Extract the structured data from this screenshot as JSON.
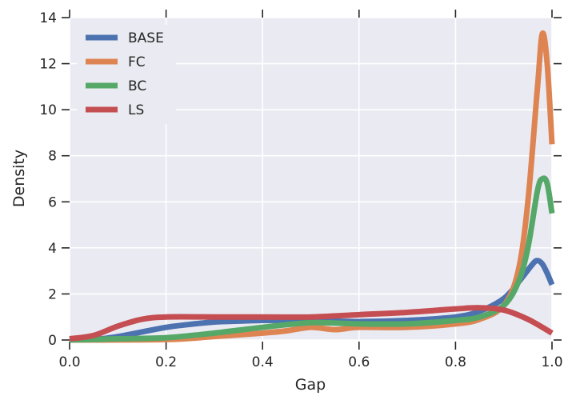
{
  "chart_data": {
    "type": "line",
    "title": "",
    "xlabel": "Gap",
    "ylabel": "Density",
    "xlim": [
      0,
      1
    ],
    "ylim": [
      0,
      14
    ],
    "xticks": [
      "0.0",
      "0.2",
      "0.4",
      "0.6",
      "0.8",
      "1.0"
    ],
    "yticks": [
      "0",
      "2",
      "4",
      "6",
      "8",
      "10",
      "12",
      "14"
    ],
    "grid": true,
    "legend_position": "top-left",
    "series": [
      {
        "name": "BASE",
        "color": "#4c72b0",
        "x": [
          0,
          0.05,
          0.1,
          0.15,
          0.2,
          0.25,
          0.3,
          0.35,
          0.4,
          0.5,
          0.6,
          0.7,
          0.8,
          0.85,
          0.9,
          0.93,
          0.96,
          0.97,
          0.98,
          0.99,
          1.0
        ],
        "y": [
          0,
          0.02,
          0.15,
          0.35,
          0.55,
          0.68,
          0.78,
          0.82,
          0.85,
          0.85,
          0.8,
          0.85,
          1.0,
          1.25,
          1.8,
          2.5,
          3.3,
          3.45,
          3.3,
          2.9,
          2.4
        ]
      },
      {
        "name": "FC",
        "color": "#dd8452",
        "x": [
          0,
          0.2,
          0.3,
          0.4,
          0.45,
          0.5,
          0.55,
          0.6,
          0.7,
          0.8,
          0.85,
          0.9,
          0.93,
          0.95,
          0.97,
          0.98,
          0.99,
          1.0
        ],
        "y": [
          0,
          0.02,
          0.15,
          0.3,
          0.4,
          0.55,
          0.45,
          0.55,
          0.55,
          0.7,
          0.9,
          1.5,
          3.0,
          6.0,
          11.0,
          13.3,
          12.0,
          8.5
        ]
      },
      {
        "name": "BC",
        "color": "#55a868",
        "x": [
          0,
          0.1,
          0.2,
          0.3,
          0.4,
          0.5,
          0.6,
          0.7,
          0.8,
          0.85,
          0.9,
          0.93,
          0.95,
          0.97,
          0.98,
          0.99,
          1.0
        ],
        "y": [
          0,
          0.05,
          0.1,
          0.3,
          0.55,
          0.75,
          0.7,
          0.7,
          0.85,
          1.0,
          1.5,
          2.5,
          4.0,
          6.5,
          7.0,
          6.8,
          5.5
        ]
      },
      {
        "name": "LS",
        "color": "#c44e52",
        "x": [
          0,
          0.05,
          0.1,
          0.15,
          0.2,
          0.3,
          0.4,
          0.5,
          0.6,
          0.7,
          0.8,
          0.85,
          0.9,
          0.95,
          1.0
        ],
        "y": [
          0.05,
          0.2,
          0.6,
          0.9,
          1.0,
          1.0,
          1.0,
          1.0,
          1.1,
          1.2,
          1.35,
          1.4,
          1.3,
          0.9,
          0.3
        ]
      }
    ]
  }
}
